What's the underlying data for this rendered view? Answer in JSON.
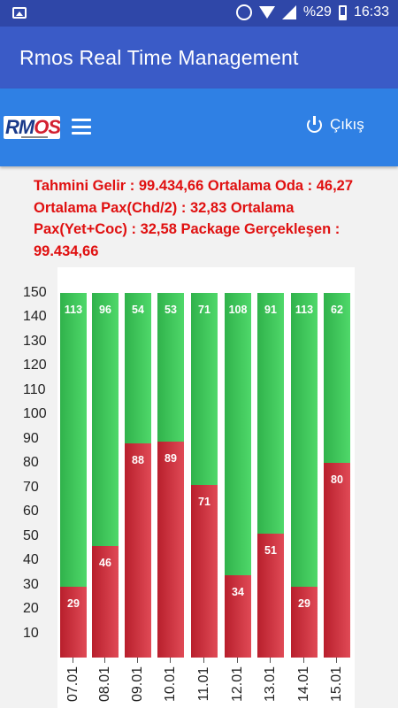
{
  "status_bar": {
    "battery_percent": "%29",
    "time": "16:33",
    "icons": [
      "image-icon",
      "alarm-icon",
      "wifi-icon",
      "signal-icon",
      "battery-icon"
    ]
  },
  "app_bar": {
    "title": "Rmos Real Time Management"
  },
  "nav": {
    "logo_text_left": "RM",
    "logo_text_right": "OS",
    "logout_label": "Çıkış"
  },
  "summary": {
    "text": "Tahmini Gelir : 99.434,66 Ortalama Oda : 46,27 Ortalama Pax(Chd/2) : 32,83 Ortalama Pax(Yet+Coc) : 32,58 Package Gerçekleşen : 99.434,66"
  },
  "colors": {
    "accent_bar": "#3a5bc7",
    "nav": "#2f80e4",
    "green": "#3ec95a",
    "red": "#c8323e",
    "summary_text": "#e01010"
  },
  "chart_data": {
    "type": "bar",
    "stacked": true,
    "categories": [
      "07.01",
      "08.01",
      "09.01",
      "10.01",
      "11.01",
      "12.01",
      "13.01",
      "14.01",
      "15.01"
    ],
    "series": [
      {
        "values": [
          29,
          46,
          88,
          89,
          71,
          34,
          51,
          29,
          80
        ],
        "color": "#c8323e"
      },
      {
        "values": [
          113,
          96,
          54,
          53,
          71,
          108,
          91,
          113,
          62
        ],
        "color": "#3ec95a"
      }
    ],
    "total": 150,
    "ylim": [
      0,
      150
    ],
    "yticks": [
      10,
      20,
      30,
      40,
      50,
      60,
      70,
      80,
      90,
      100,
      110,
      120,
      130,
      140,
      150
    ]
  }
}
